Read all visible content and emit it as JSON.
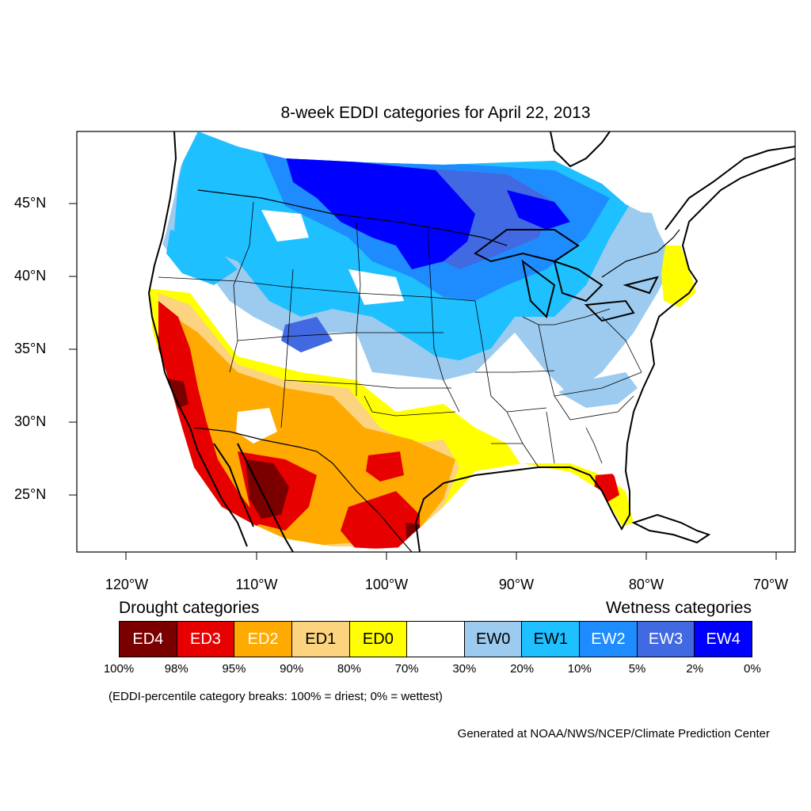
{
  "title": "8-week EDDI categories for April 22, 2013",
  "lat_ticks": [
    {
      "value": 45,
      "label": "45°N"
    },
    {
      "value": 40,
      "label": "40°N"
    },
    {
      "value": 35,
      "label": "35°N"
    },
    {
      "value": 30,
      "label": "30°N"
    },
    {
      "value": 25,
      "label": "25°N"
    }
  ],
  "lon_ticks": [
    {
      "value": -120,
      "label": "120°W"
    },
    {
      "value": -110,
      "label": "110°W"
    },
    {
      "value": -100,
      "label": "100°W"
    },
    {
      "value": -90,
      "label": "90°W"
    },
    {
      "value": -80,
      "label": "80°W"
    },
    {
      "value": -70,
      "label": "70°W"
    }
  ],
  "legend": {
    "drought_heading": "Drought categories",
    "wetness_heading": "Wetness categories",
    "categories": [
      {
        "label": "ED4",
        "color": "#7a0000",
        "text_color": "#ffffff"
      },
      {
        "label": "ED3",
        "color": "#e60000",
        "text_color": "#ffffff"
      },
      {
        "label": "ED2",
        "color": "#ffaa00",
        "text_color": "#ffffff"
      },
      {
        "label": "ED1",
        "color": "#fcd37f",
        "text_color": "#000000"
      },
      {
        "label": "ED0",
        "color": "#ffff00",
        "text_color": "#000000"
      },
      {
        "label": "",
        "color": "#ffffff",
        "text_color": "#000000"
      },
      {
        "label": "EW0",
        "color": "#9ccbef",
        "text_color": "#000000"
      },
      {
        "label": "EW1",
        "color": "#1ec0ff",
        "text_color": "#000000"
      },
      {
        "label": "EW2",
        "color": "#1e8cff",
        "text_color": "#ffffff"
      },
      {
        "label": "EW3",
        "color": "#4169e1",
        "text_color": "#ffffff"
      },
      {
        "label": "EW4",
        "color": "#0000ff",
        "text_color": "#ffffff"
      }
    ],
    "breaks": [
      "100%",
      "98%",
      "95%",
      "90%",
      "80%",
      "70%",
      "30%",
      "20%",
      "10%",
      "5%",
      "2%",
      "0%"
    ],
    "note": "(EDDI-percentile category breaks: 100% = driest; 0% = wettest)"
  },
  "credit": "Generated at NOAA/NWS/NCEP/Climate Prediction Center"
}
